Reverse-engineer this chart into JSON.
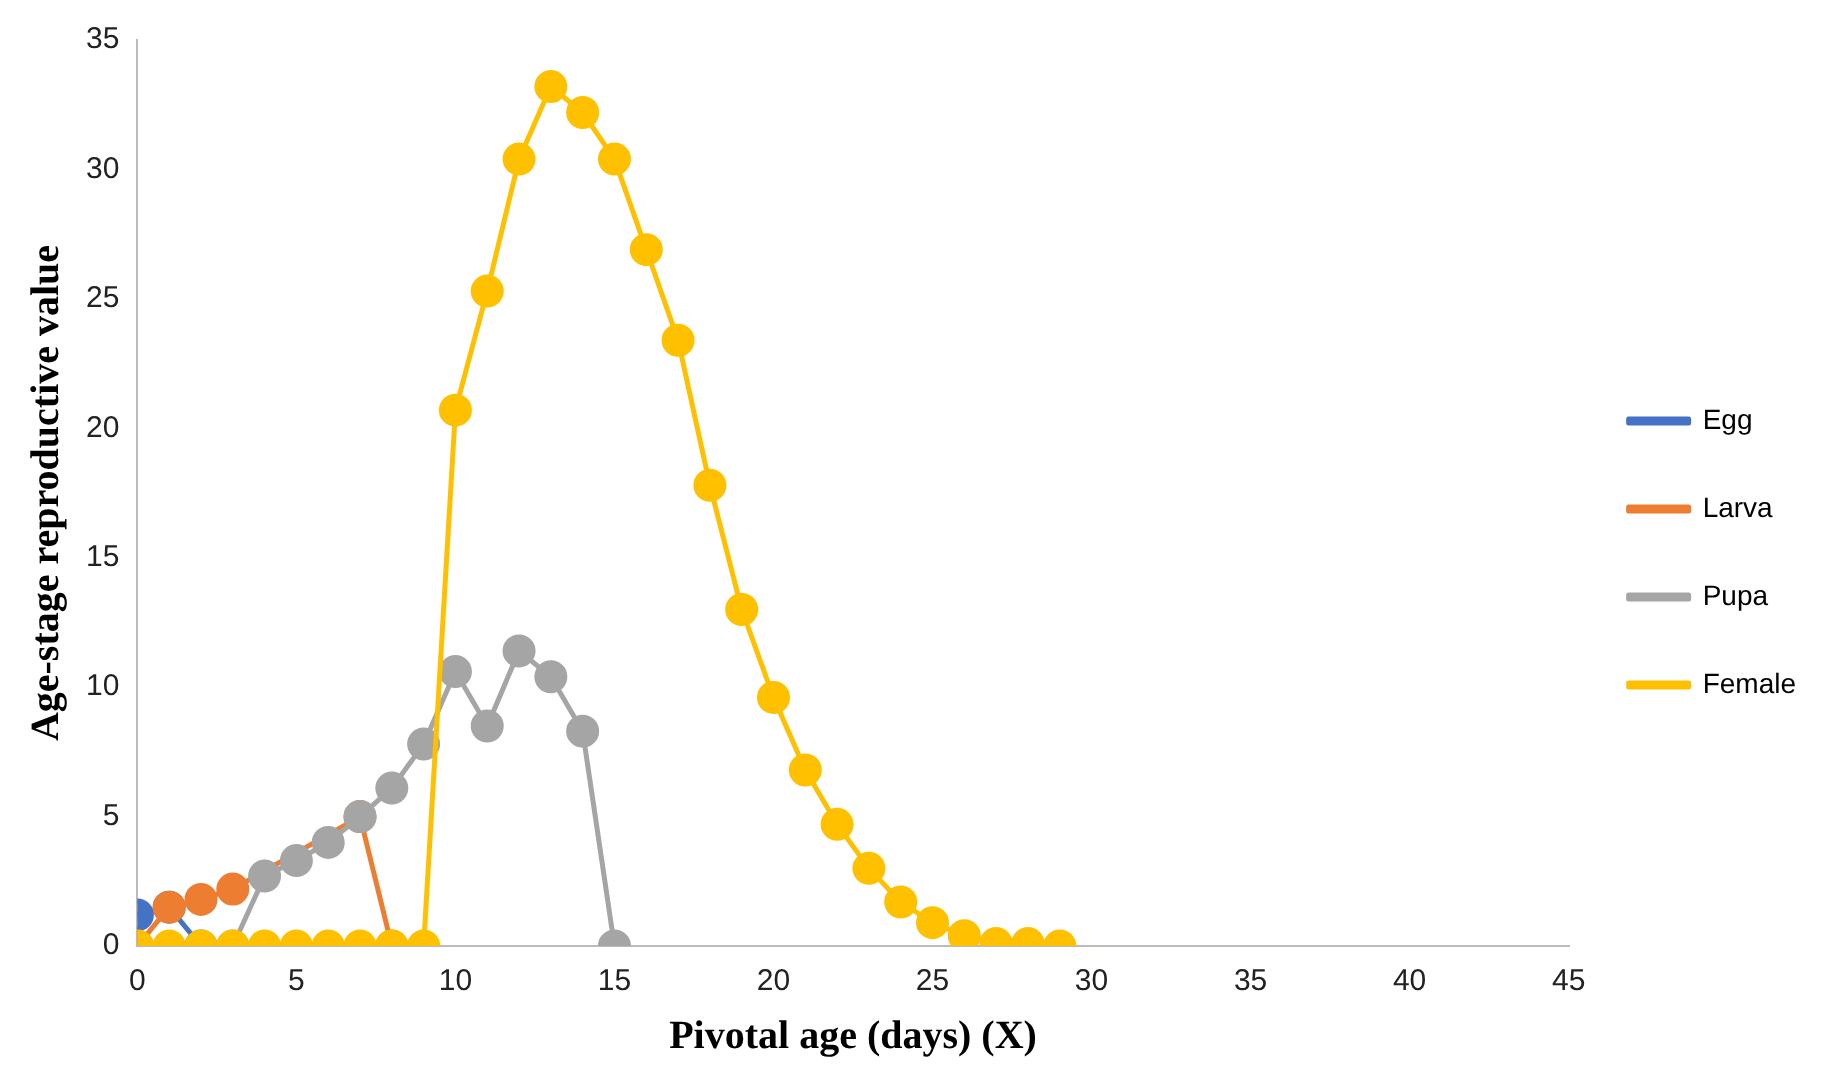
{
  "chart_data": {
    "type": "line",
    "xlabel": "Pivotal age (days) (X)",
    "ylabel": "Age-stage reproductive value",
    "xlim": [
      0,
      45
    ],
    "xticks": [
      0,
      5,
      10,
      15,
      20,
      25,
      30,
      35,
      40,
      45
    ],
    "ylim": [
      0,
      35
    ],
    "yticks": [
      0,
      5,
      10,
      15,
      20,
      25,
      30,
      35
    ],
    "grid": false,
    "legend": "right",
    "marker": "circle",
    "series": [
      {
        "name": "Egg",
        "color": "#4472c4",
        "x": [
          0,
          1,
          2
        ],
        "values": [
          1.2,
          1.5,
          0
        ]
      },
      {
        "name": "Larva",
        "color": "#ed7d31",
        "x": [
          0,
          1,
          2,
          3,
          4,
          5,
          6,
          7,
          8
        ],
        "values": [
          0,
          1.5,
          1.8,
          2.2,
          null,
          null,
          null,
          5.0,
          0
        ]
      },
      {
        "name": "Pupa",
        "color": "#a5a5a5",
        "x": [
          3,
          4,
          5,
          6,
          7,
          8,
          9,
          10,
          11,
          12,
          13,
          14,
          15
        ],
        "values": [
          0,
          2.7,
          3.3,
          4.0,
          5.0,
          6.1,
          7.8,
          10.6,
          8.5,
          11.4,
          10.4,
          8.3,
          0
        ]
      },
      {
        "name": "Female",
        "color": "#ffc000",
        "x": [
          0,
          1,
          2,
          3,
          4,
          5,
          6,
          7,
          8,
          9,
          10,
          11,
          12,
          13,
          14,
          15,
          16,
          17,
          18,
          19,
          20,
          21,
          22,
          23,
          24,
          25,
          26,
          27,
          28,
          29
        ],
        "values": [
          0,
          0,
          0,
          0,
          0,
          0,
          0,
          0,
          0,
          0,
          20.7,
          25.3,
          30.4,
          33.2,
          32.2,
          30.4,
          26.9,
          23.4,
          17.8,
          13.0,
          9.6,
          6.8,
          4.7,
          3.0,
          1.7,
          0.9,
          0.4,
          0.1,
          0.1,
          0
        ]
      }
    ]
  }
}
